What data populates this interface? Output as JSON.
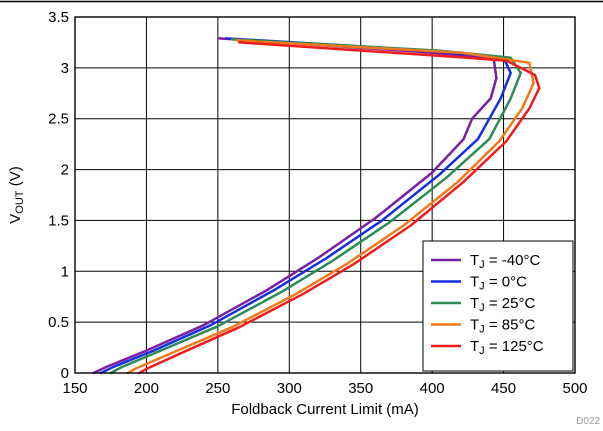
{
  "chart_data": {
    "type": "line",
    "title": "",
    "xlabel": "Foldback Current Limit (mA)",
    "ylabel": {
      "base": "V",
      "sub": "OUT",
      "unit": " (V)"
    },
    "xlim": [
      150,
      500
    ],
    "ylim": [
      0,
      3.5
    ],
    "xticks": [
      150,
      200,
      250,
      300,
      350,
      400,
      450,
      500
    ],
    "yticks": [
      0,
      0.5,
      1,
      1.5,
      2,
      2.5,
      3,
      3.5
    ],
    "xtick_labels": [
      "150",
      "200",
      "250",
      "300",
      "350",
      "400",
      "450",
      "500"
    ],
    "ytick_labels": [
      "0",
      "0.5",
      "1",
      "1.5",
      "2",
      "2.5",
      "3",
      "3.5"
    ],
    "grid": true,
    "legend_position": "bottom-right",
    "footnote": "D022",
    "series": [
      {
        "name": "T_J = -40°C",
        "legend": {
          "base": "T",
          "sub": "J",
          "rest": " = -40°C"
        },
        "color": "#7a1fa2",
        "points": [
          [
            163,
            0
          ],
          [
            172,
            0.06
          ],
          [
            200,
            0.22
          ],
          [
            240,
            0.47
          ],
          [
            285,
            0.82
          ],
          [
            320,
            1.13
          ],
          [
            360,
            1.52
          ],
          [
            400,
            1.97
          ],
          [
            422,
            2.3
          ],
          [
            428,
            2.5
          ],
          [
            441,
            2.7
          ],
          [
            445,
            2.9
          ],
          [
            443,
            3.1
          ],
          [
            390,
            3.16
          ],
          [
            251,
            3.29
          ]
        ]
      },
      {
        "name": "T_J = 0°C",
        "legend": {
          "base": "T",
          "sub": "J",
          "rest": " = 0°C"
        },
        "color": "#1530e0",
        "points": [
          [
            168,
            0
          ],
          [
            177,
            0.06
          ],
          [
            205,
            0.22
          ],
          [
            245,
            0.47
          ],
          [
            290,
            0.82
          ],
          [
            325,
            1.12
          ],
          [
            365,
            1.5
          ],
          [
            405,
            1.95
          ],
          [
            432,
            2.3
          ],
          [
            448,
            2.7
          ],
          [
            455,
            2.95
          ],
          [
            450,
            3.1
          ],
          [
            400,
            3.17
          ],
          [
            256,
            3.29
          ]
        ]
      },
      {
        "name": "T_J = 25°C",
        "legend": {
          "base": "T",
          "sub": "J",
          "rest": " = 25°C"
        },
        "color": "#2e8b57",
        "points": [
          [
            175,
            0
          ],
          [
            183,
            0.06
          ],
          [
            210,
            0.22
          ],
          [
            250,
            0.46
          ],
          [
            295,
            0.8
          ],
          [
            330,
            1.1
          ],
          [
            370,
            1.48
          ],
          [
            410,
            1.92
          ],
          [
            440,
            2.3
          ],
          [
            455,
            2.7
          ],
          [
            462,
            2.95
          ],
          [
            455,
            3.1
          ],
          [
            405,
            3.17
          ],
          [
            260,
            3.28
          ]
        ]
      },
      {
        "name": "T_J = 85°C",
        "legend": {
          "base": "T",
          "sub": "J",
          "rest": " = 85°C"
        },
        "color": "#f07a1a",
        "points": [
          [
            187,
            0
          ],
          [
            192,
            0.04
          ],
          [
            220,
            0.21
          ],
          [
            260,
            0.45
          ],
          [
            305,
            0.78
          ],
          [
            340,
            1.07
          ],
          [
            380,
            1.45
          ],
          [
            418,
            1.88
          ],
          [
            447,
            2.28
          ],
          [
            463,
            2.6
          ],
          [
            471,
            2.85
          ],
          [
            468,
            3.05
          ],
          [
            420,
            3.15
          ],
          [
            263,
            3.27
          ]
        ]
      },
      {
        "name": "T_J = 125°C",
        "legend": {
          "base": "T",
          "sub": "J",
          "rest": " = 125°C"
        },
        "color": "#ee1c1c",
        "points": [
          [
            195,
            0
          ],
          [
            200,
            0.04
          ],
          [
            225,
            0.2
          ],
          [
            265,
            0.45
          ],
          [
            310,
            0.78
          ],
          [
            345,
            1.07
          ],
          [
            385,
            1.45
          ],
          [
            422,
            1.88
          ],
          [
            452,
            2.28
          ],
          [
            468,
            2.6
          ],
          [
            475,
            2.8
          ],
          [
            472,
            2.93
          ],
          [
            452,
            3.07
          ],
          [
            425,
            3.1
          ],
          [
            265,
            3.25
          ]
        ]
      }
    ]
  }
}
